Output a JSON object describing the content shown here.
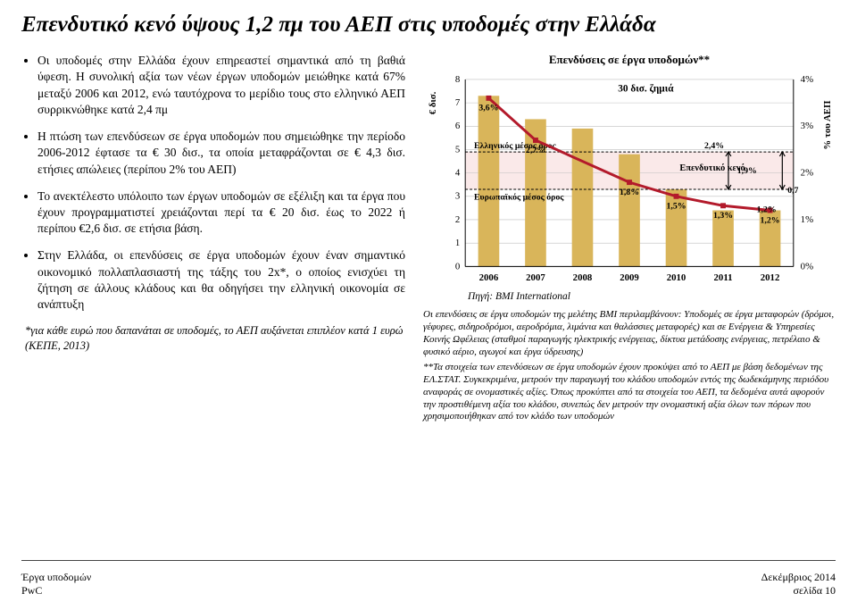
{
  "title": "Επενδυτικό κενό ύψους 1,2 πμ του ΑΕΠ στις υποδομές στην Ελλάδα",
  "bullets": [
    "Οι υποδομές στην Ελλάδα έχουν επηρεαστεί σημαντικά από τη βαθιά ύφεση. Η συνολική αξία των νέων έργων υποδομών μειώθηκε κατά 67% μεταξύ 2006 και 2012, ενώ ταυτόχρονα το μερίδιο τους στο ελληνικό ΑΕΠ συρρικνώθηκε κατά 2,4 πμ",
    "Η πτώση των επενδύσεων σε έργα υποδομών που σημειώθηκε την περίοδο 2006-2012 έφτασε τα € 30 δισ., τα οποία μεταφράζονται σε € 4,3 δισ. ετήσιες απώλειες (περίπου 2% του ΑΕΠ)",
    "Το ανεκτέλεστο υπόλοιπο των έργων υποδομών σε εξέλιξη και τα έργα που έχουν προγραμματιστεί χρειάζονται περί τα € 20 δισ. έως το 2022 ή περίπου €2,6 δισ. σε ετήσια βάση.",
    "Στην Ελλάδα, οι επενδύσεις σε έργα υποδομών έχουν έναν σημαντικό οικονομικό πολλαπλασιαστή της τάξης του 2x*, ο οποίος ενισχύει τη ζήτηση σε άλλους κλάδους και θα οδηγήσει την ελληνική οικονομία σε ανάπτυξη"
  ],
  "footnote_left": "*για κάθε ευρώ που δαπανάται σε υποδομές, το ΑΕΠ αυξάνεται επιπλέον κατά 1 ευρώ (ΚΕΠΕ, 2013)",
  "chart": {
    "title": "Επενδύσεις σε έργα υποδομών**",
    "type": "combo-bar-line-dual-axis",
    "categories": [
      "2006",
      "2007",
      "2008",
      "2009",
      "2010",
      "2011",
      "2012"
    ],
    "bar_values": [
      7.3,
      6.3,
      5.9,
      4.8,
      3.3,
      2.4,
      2.4
    ],
    "bar_color": "#d9b55a",
    "bar_width": 0.45,
    "line_pct_values": [
      3.6,
      2.7,
      null,
      1.8,
      1.5,
      1.3,
      1.2
    ],
    "pct_labels": [
      "3,6%",
      "2,7%",
      "",
      "1,8%",
      "1,5%",
      "1,3%",
      "1,2%"
    ],
    "line_color": "#b31a2b",
    "line_width": 3,
    "annotations": {
      "damage_label": "30 δισ. ζημιά",
      "greek_avg_label": "Ελληνικός μέσος όρος",
      "greek_avg_value": 4.9,
      "eu_avg_label": "Ευρωπαϊκός μέσος όρος",
      "eu_avg_value": 3.3,
      "invest_gap_label": "Επενδυτικό κενό",
      "pct_right_labels": [
        "2,4%",
        "1,9%",
        "1,2%"
      ],
      "extra_label": "0,7"
    },
    "y_left": {
      "label": "€ δισ.",
      "min": 0,
      "max": 8,
      "step": 1
    },
    "y_right": {
      "label": "% του ΑΕΠ",
      "min": 0,
      "max": 4,
      "step": 1,
      "tick_format": "{}%"
    },
    "shaded_band": {
      "from": 3.3,
      "to": 4.9,
      "fill": "#f5d7d7",
      "opacity": 0.55
    },
    "background": "#ffffff",
    "gridline_color": "#bfbfbf",
    "axis_color": "#000000",
    "text_color": "#000000",
    "title_fontsize": 13,
    "tick_fontsize": 11
  },
  "source": "Πηγή: BMI International",
  "notes": [
    "Οι επενδύσεις σε έργα υποδομών της μελέτης BMI περιλαμβάνουν: Υποδομές σε έργα μεταφορών (δρόμοι, γέφυρες, σιδηροδρόμοι, αεροδρόμια, λιμάνια και θαλάσσιες μεταφορές) και σε Ενέργεια & Υπηρεσίες Κοινής Ωφέλειας (σταθμοί παραγωγής ηλεκτρικής ενέργειας, δίκτυα μετάδοσης ενέργειας, πετρέλαιο & φυσικό αέριο, αγωγοί και έργα ύδρευσης)",
    "**Τα στοιχεία των επενδύσεων σε έργα υποδομών έχουν προκύψει από το ΑΕΠ με βάση δεδομένων της ΕΛ.ΣΤΑΤ. Συγκεκριμένα, μετρούν την παραγωγή του κλάδου υποδομών εντός της δωδεκάμηνης περιόδου αναφοράς σε ονομαστικές αξίες. Όπως προκύπτει από τα στοιχεία του ΑΕΠ, τα δεδομένα αυτά αφορούν την προστιθέμενη αξία του κλάδου, συνεπώς δεν μετρούν την ονομαστική αξία όλων των πόρων που χρησιμοποιήθηκαν από τον κλάδο των υποδομών"
  ],
  "footer": {
    "left_line1": "Έργα υποδομών",
    "left_line2": "PwC",
    "right_line1": "Δεκέμβριος 2014",
    "right_line2": "σελίδα 10"
  }
}
